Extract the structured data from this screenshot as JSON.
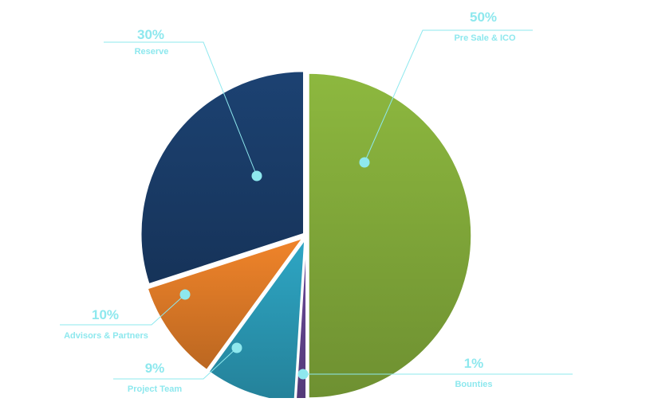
{
  "chart_data": {
    "type": "pie",
    "title": "",
    "slices": [
      {
        "label": "Pre Sale & ICO",
        "value": 50,
        "value_label": "50%",
        "color": "#8db83f"
      },
      {
        "label": "Bounties",
        "value": 1,
        "value_label": "1%",
        "color": "#6a4a9a"
      },
      {
        "label": "Project Team",
        "value": 9,
        "value_label": "9%",
        "color": "#2ea6c4"
      },
      {
        "label": "Advisors & Partners",
        "value": 10,
        "value_label": "10%",
        "color": "#f0842a"
      },
      {
        "label": "Reserve",
        "value": 30,
        "value_label": "30%",
        "color": "#1c4272"
      }
    ],
    "leader_color": "#8ee8ee",
    "legend": "none"
  }
}
